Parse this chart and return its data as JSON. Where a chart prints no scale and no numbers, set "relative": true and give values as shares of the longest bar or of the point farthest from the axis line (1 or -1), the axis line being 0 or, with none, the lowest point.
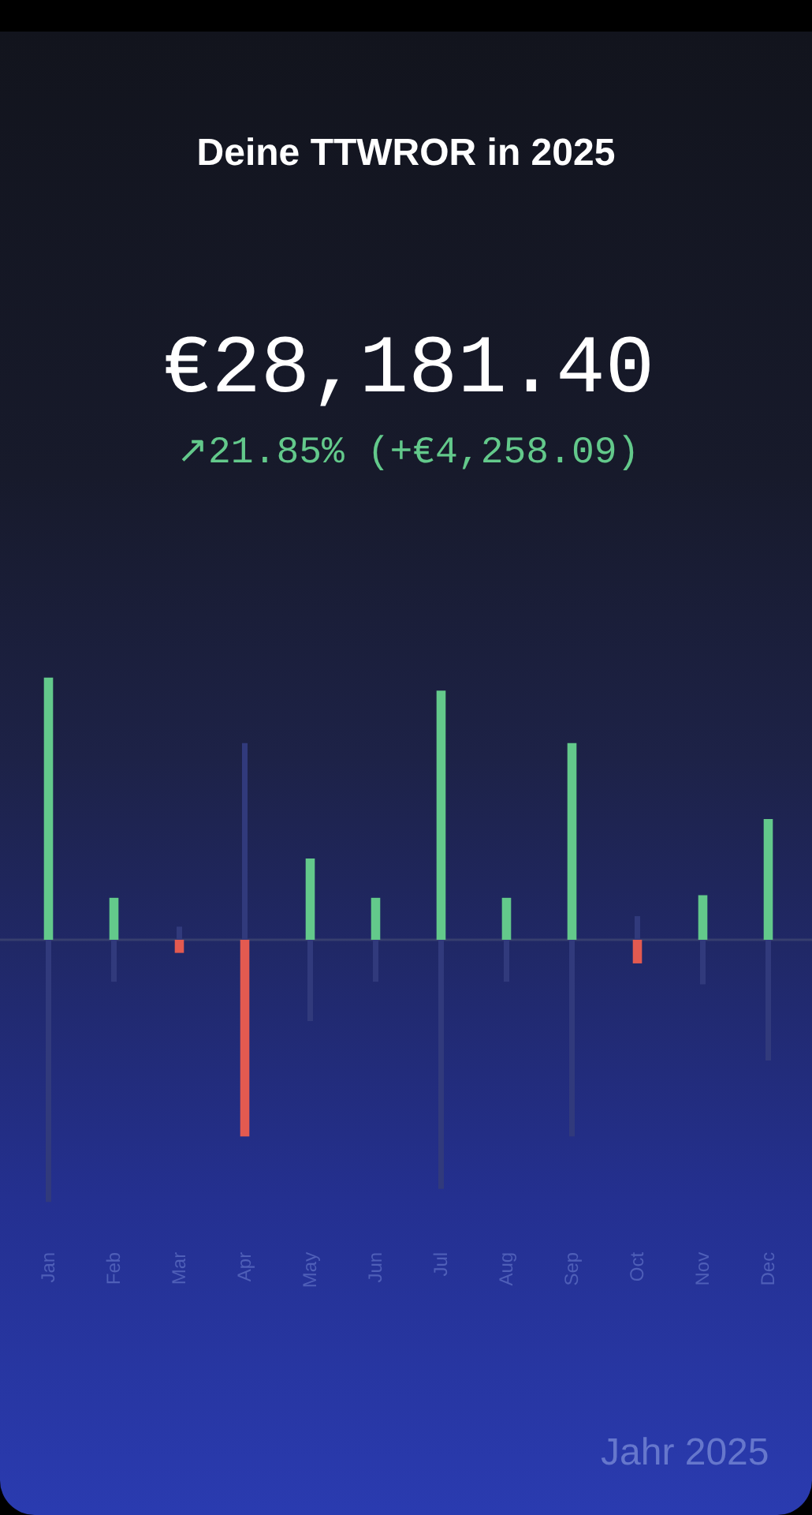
{
  "chart_data": {
    "type": "bar",
    "title": "Deine TTWROR in 2025",
    "subtitle": "€28,181.40",
    "annotations": [
      "↗21.85% (+€4,258.09)",
      "Jahr 2025"
    ],
    "categories": [
      "Jan",
      "Feb",
      "Mar",
      "Apr",
      "May",
      "Jun",
      "Jul",
      "Aug",
      "Sep",
      "Oct",
      "Nov",
      "Dec"
    ],
    "relative": true,
    "series": [
      {
        "values": [
          1,
          0.16,
          -0.05,
          -0.75,
          0.31,
          0.16,
          0.95,
          0.16,
          0.75,
          -0.09,
          0.17,
          0.46
        ],
        "colors": [
          "#63c98b",
          "#63c98b",
          "#e35a50",
          "#e35a50",
          "#63c98b",
          "#63c98b",
          "#63c98b",
          "#63c98b",
          "#63c98b",
          "#e35a50",
          "#63c98b",
          "#63c98b"
        ]
      },
      {
        "values": [
          -1,
          -0.16,
          0.05,
          0.75,
          -0.31,
          -0.16,
          -0.95,
          -0.16,
          -0.75,
          0.09,
          -0.17,
          -0.46
        ],
        "color": "#313a7c"
      }
    ],
    "ref_lines": [
      {
        "axis": "y",
        "value": 0,
        "color": "#363e6e"
      }
    ],
    "grid": false
  }
}
